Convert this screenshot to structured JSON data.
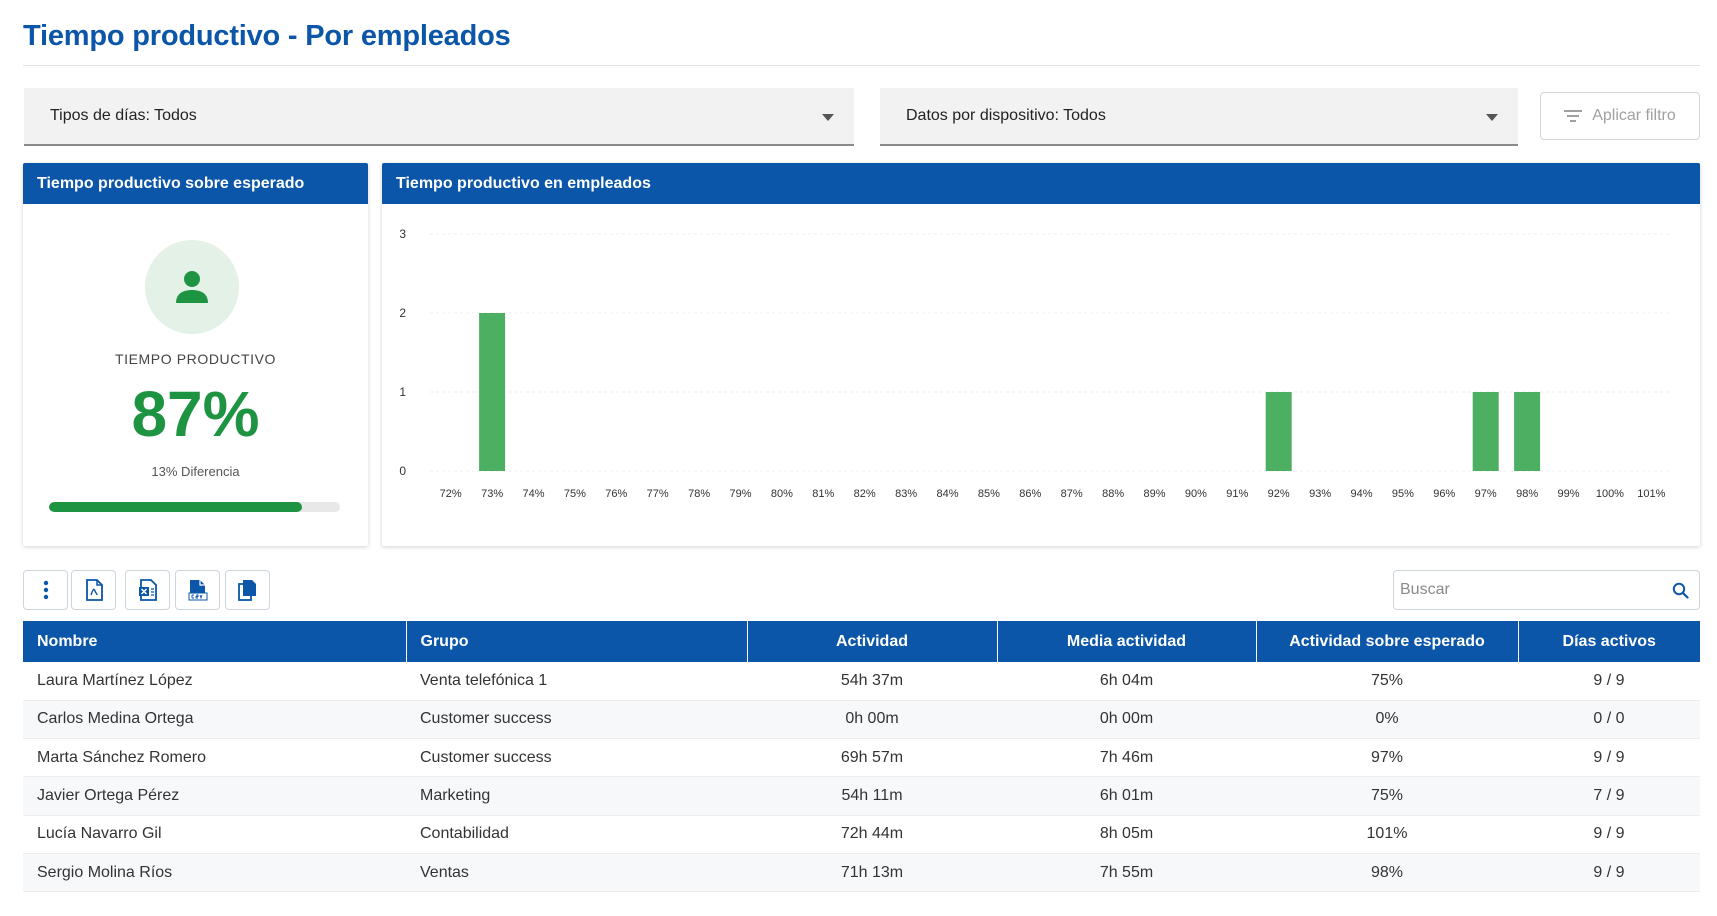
{
  "page": {
    "title": "Tiempo productivo - Por empleados"
  },
  "filters": {
    "days_type": "Tipos de días: Todos",
    "device_data": "Datos por dispositivo: Todos",
    "apply_label": "Aplicar filtro"
  },
  "kpi_card": {
    "header": "Tiempo productivo sobre esperado",
    "label": "TIEMPO PRODUCTIVO",
    "value": "87%",
    "value_fraction": 0.87,
    "difference": "13% Diferencia",
    "accent_color": "#1e9442",
    "icon": "person-icon"
  },
  "chart_card": {
    "header": "Tiempo productivo en empleados"
  },
  "chart_data": {
    "type": "bar",
    "title": "",
    "xlabel": "",
    "ylabel": "",
    "categories": [
      "72%",
      "73%",
      "74%",
      "75%",
      "76%",
      "77%",
      "78%",
      "79%",
      "80%",
      "81%",
      "82%",
      "83%",
      "84%",
      "85%",
      "86%",
      "87%",
      "88%",
      "89%",
      "90%",
      "91%",
      "92%",
      "93%",
      "94%",
      "95%",
      "96%",
      "97%",
      "98%",
      "99%",
      "100%",
      "101%"
    ],
    "values": [
      0,
      2,
      0,
      0,
      0,
      0,
      0,
      0,
      0,
      0,
      0,
      0,
      0,
      0,
      0,
      0,
      0,
      0,
      0,
      0,
      1,
      0,
      0,
      0,
      0,
      1,
      1,
      0,
      0,
      0
    ],
    "y_ticks": [
      "0",
      "1",
      "2",
      "3"
    ],
    "ylim": [
      0,
      3
    ],
    "grid": true,
    "bar_color": "#4caf62"
  },
  "toolbar": {
    "items": [
      {
        "name": "more-options",
        "icon": "kebab-icon"
      },
      {
        "name": "export-pdf",
        "icon": "pdf-file-icon"
      },
      {
        "name": "export-excel",
        "icon": "excel-file-icon"
      },
      {
        "name": "export-csv",
        "icon": "csv-file-icon"
      },
      {
        "name": "copy",
        "icon": "copy-icon"
      }
    ]
  },
  "search": {
    "placeholder": "Buscar",
    "value": ""
  },
  "table": {
    "columns": [
      "Nombre",
      "Grupo",
      "Actividad",
      "Media actividad",
      "Actividad sobre esperado",
      "Días activos"
    ],
    "rows": [
      {
        "name": "Laura Martínez López",
        "group": "Venta telefónica 1",
        "activity": "54h 37m",
        "avg": "6h 04m",
        "over_expected": "75%",
        "active_days": "9 / 9",
        "alert": false
      },
      {
        "name": "Carlos Medina Ortega",
        "group": "Customer success",
        "activity": "0h 00m",
        "avg": "0h 00m",
        "over_expected": "0%",
        "active_days": "0 / 0",
        "alert": false
      },
      {
        "name": "Marta Sánchez Romero",
        "group": "Customer success",
        "activity": "69h 57m",
        "avg": "7h 46m",
        "over_expected": "97%",
        "active_days": "9 / 9",
        "alert": false
      },
      {
        "name": "Javier Ortega Pérez",
        "group": "Marketing",
        "activity": "54h 11m",
        "avg": "6h 01m",
        "over_expected": "75%",
        "active_days": "7 / 9",
        "alert": true
      },
      {
        "name": "Lucía Navarro Gil",
        "group": "Contabilidad",
        "activity": "72h 44m",
        "avg": "8h 05m",
        "over_expected": "101%",
        "active_days": "9 / 9",
        "alert": false
      },
      {
        "name": "Sergio Molina Ríos",
        "group": "Ventas",
        "activity": "71h 13m",
        "avg": "7h 55m",
        "over_expected": "98%",
        "active_days": "9 / 9",
        "alert": false
      }
    ]
  },
  "colors": {
    "primary": "#0b56a8",
    "success": "#1e9442",
    "alert": "#d32f2f"
  }
}
